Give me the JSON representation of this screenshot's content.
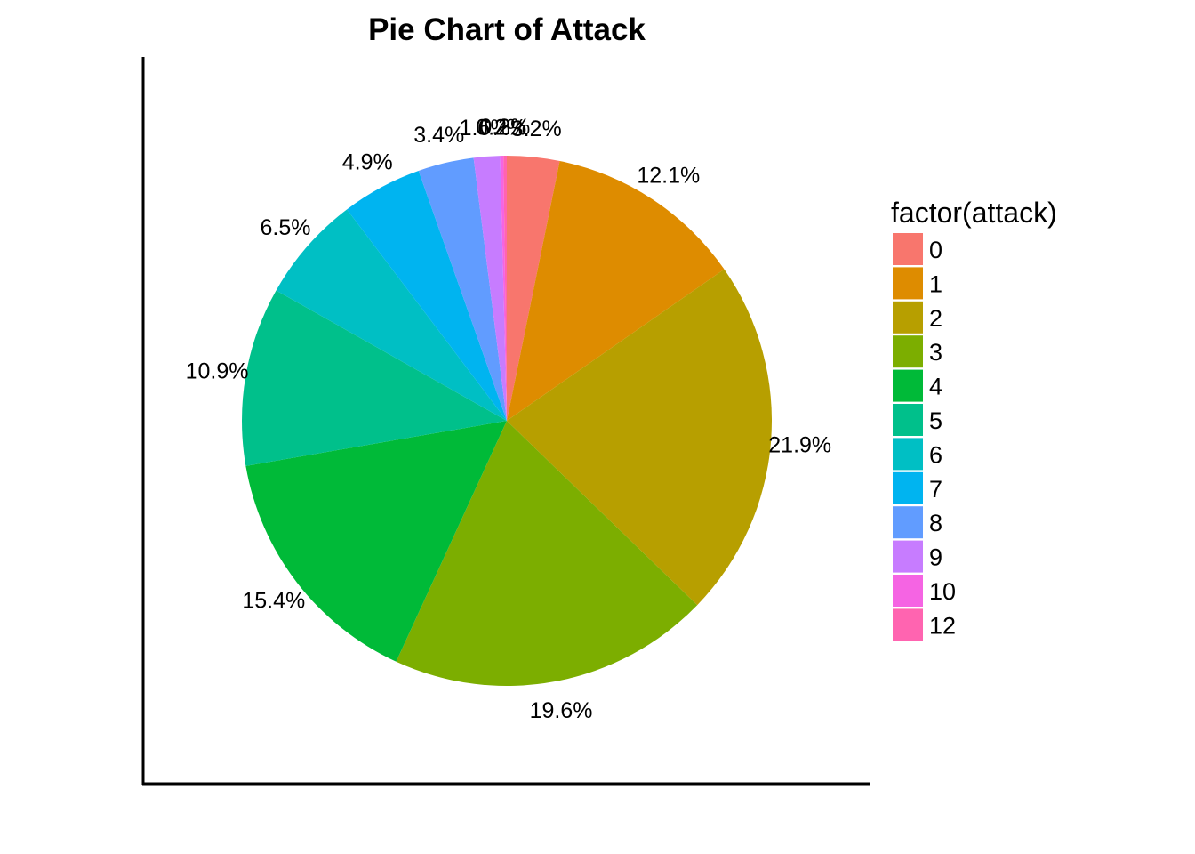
{
  "chart_data": {
    "type": "pie",
    "title": "Pie Chart of Attack",
    "legend_title": "factor(attack)",
    "legend_position": "right",
    "categories": [
      "0",
      "1",
      "2",
      "3",
      "4",
      "5",
      "6",
      "7",
      "8",
      "9",
      "10",
      "12"
    ],
    "values": [
      3.2,
      12.1,
      21.9,
      19.6,
      15.4,
      10.9,
      6.5,
      4.9,
      3.4,
      1.6,
      0.2,
      0.2
    ],
    "labels": [
      "3.2%",
      "12.1%",
      "21.9%",
      "19.6%",
      "15.4%",
      "10.9%",
      "6.5%",
      "4.9%",
      "3.4%",
      "1.6%",
      "0.2%",
      "0.2%"
    ],
    "colors": [
      "#F8766D",
      "#DE8C00",
      "#B79F00",
      "#7CAE00",
      "#00BA38",
      "#00C08B",
      "#00BFC4",
      "#00B4F0",
      "#619CFF",
      "#C77CFF",
      "#F564E3",
      "#FF64B0"
    ]
  }
}
